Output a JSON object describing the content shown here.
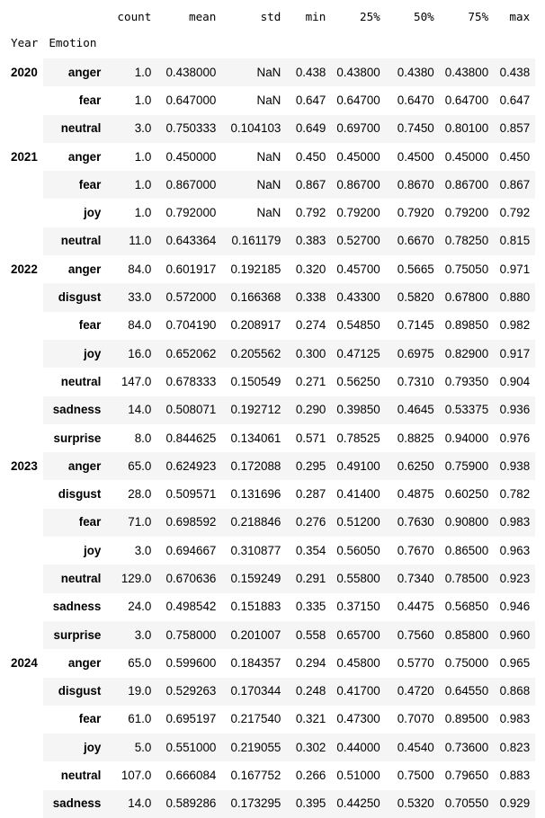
{
  "columns": [
    "count",
    "mean",
    "std",
    "min",
    "25%",
    "50%",
    "75%",
    "max"
  ],
  "index_names": [
    "Year",
    "Emotion"
  ],
  "groups": [
    {
      "year": "2020",
      "rows": [
        {
          "emotion": "anger",
          "values": [
            "1.0",
            "0.438000",
            "NaN",
            "0.438",
            "0.43800",
            "0.4380",
            "0.43800",
            "0.438"
          ]
        },
        {
          "emotion": "fear",
          "values": [
            "1.0",
            "0.647000",
            "NaN",
            "0.647",
            "0.64700",
            "0.6470",
            "0.64700",
            "0.647"
          ]
        },
        {
          "emotion": "neutral",
          "values": [
            "3.0",
            "0.750333",
            "0.104103",
            "0.649",
            "0.69700",
            "0.7450",
            "0.80100",
            "0.857"
          ]
        }
      ]
    },
    {
      "year": "2021",
      "rows": [
        {
          "emotion": "anger",
          "values": [
            "1.0",
            "0.450000",
            "NaN",
            "0.450",
            "0.45000",
            "0.4500",
            "0.45000",
            "0.450"
          ]
        },
        {
          "emotion": "fear",
          "values": [
            "1.0",
            "0.867000",
            "NaN",
            "0.867",
            "0.86700",
            "0.8670",
            "0.86700",
            "0.867"
          ]
        },
        {
          "emotion": "joy",
          "values": [
            "1.0",
            "0.792000",
            "NaN",
            "0.792",
            "0.79200",
            "0.7920",
            "0.79200",
            "0.792"
          ]
        },
        {
          "emotion": "neutral",
          "values": [
            "11.0",
            "0.643364",
            "0.161179",
            "0.383",
            "0.52700",
            "0.6670",
            "0.78250",
            "0.815"
          ]
        }
      ]
    },
    {
      "year": "2022",
      "rows": [
        {
          "emotion": "anger",
          "values": [
            "84.0",
            "0.601917",
            "0.192185",
            "0.320",
            "0.45700",
            "0.5665",
            "0.75050",
            "0.971"
          ]
        },
        {
          "emotion": "disgust",
          "values": [
            "33.0",
            "0.572000",
            "0.166368",
            "0.338",
            "0.43300",
            "0.5820",
            "0.67800",
            "0.880"
          ]
        },
        {
          "emotion": "fear",
          "values": [
            "84.0",
            "0.704190",
            "0.208917",
            "0.274",
            "0.54850",
            "0.7145",
            "0.89850",
            "0.982"
          ]
        },
        {
          "emotion": "joy",
          "values": [
            "16.0",
            "0.652062",
            "0.205562",
            "0.300",
            "0.47125",
            "0.6975",
            "0.82900",
            "0.917"
          ]
        },
        {
          "emotion": "neutral",
          "values": [
            "147.0",
            "0.678333",
            "0.150549",
            "0.271",
            "0.56250",
            "0.7310",
            "0.79350",
            "0.904"
          ]
        },
        {
          "emotion": "sadness",
          "values": [
            "14.0",
            "0.508071",
            "0.192712",
            "0.290",
            "0.39850",
            "0.4645",
            "0.53375",
            "0.936"
          ]
        },
        {
          "emotion": "surprise",
          "values": [
            "8.0",
            "0.844625",
            "0.134061",
            "0.571",
            "0.78525",
            "0.8825",
            "0.94000",
            "0.976"
          ]
        }
      ]
    },
    {
      "year": "2023",
      "rows": [
        {
          "emotion": "anger",
          "values": [
            "65.0",
            "0.624923",
            "0.172088",
            "0.295",
            "0.49100",
            "0.6250",
            "0.75900",
            "0.938"
          ]
        },
        {
          "emotion": "disgust",
          "values": [
            "28.0",
            "0.509571",
            "0.131696",
            "0.287",
            "0.41400",
            "0.4875",
            "0.60250",
            "0.782"
          ]
        },
        {
          "emotion": "fear",
          "values": [
            "71.0",
            "0.698592",
            "0.218846",
            "0.276",
            "0.51200",
            "0.7630",
            "0.90800",
            "0.983"
          ]
        },
        {
          "emotion": "joy",
          "values": [
            "3.0",
            "0.694667",
            "0.310877",
            "0.354",
            "0.56050",
            "0.7670",
            "0.86500",
            "0.963"
          ]
        },
        {
          "emotion": "neutral",
          "values": [
            "129.0",
            "0.670636",
            "0.159249",
            "0.291",
            "0.55800",
            "0.7340",
            "0.78500",
            "0.923"
          ]
        },
        {
          "emotion": "sadness",
          "values": [
            "24.0",
            "0.498542",
            "0.151883",
            "0.335",
            "0.37150",
            "0.4475",
            "0.56850",
            "0.946"
          ]
        },
        {
          "emotion": "surprise",
          "values": [
            "3.0",
            "0.758000",
            "0.201007",
            "0.558",
            "0.65700",
            "0.7560",
            "0.85800",
            "0.960"
          ]
        }
      ]
    },
    {
      "year": "2024",
      "rows": [
        {
          "emotion": "anger",
          "values": [
            "65.0",
            "0.599600",
            "0.184357",
            "0.294",
            "0.45800",
            "0.5770",
            "0.75000",
            "0.965"
          ]
        },
        {
          "emotion": "disgust",
          "values": [
            "19.0",
            "0.529263",
            "0.170344",
            "0.248",
            "0.41700",
            "0.4720",
            "0.64550",
            "0.868"
          ]
        },
        {
          "emotion": "fear",
          "values": [
            "61.0",
            "0.695197",
            "0.217540",
            "0.321",
            "0.47300",
            "0.7070",
            "0.89500",
            "0.983"
          ]
        },
        {
          "emotion": "joy",
          "values": [
            "5.0",
            "0.551000",
            "0.219055",
            "0.302",
            "0.44000",
            "0.4540",
            "0.73600",
            "0.823"
          ]
        },
        {
          "emotion": "neutral",
          "values": [
            "107.0",
            "0.666084",
            "0.167752",
            "0.266",
            "0.51000",
            "0.7500",
            "0.79650",
            "0.883"
          ]
        },
        {
          "emotion": "sadness",
          "values": [
            "14.0",
            "0.589286",
            "0.173295",
            "0.395",
            "0.44250",
            "0.5320",
            "0.70550",
            "0.929"
          ]
        }
      ]
    }
  ],
  "colors": {
    "stripe": "#f5f5f5",
    "background": "#ffffff",
    "text": "#000000"
  }
}
